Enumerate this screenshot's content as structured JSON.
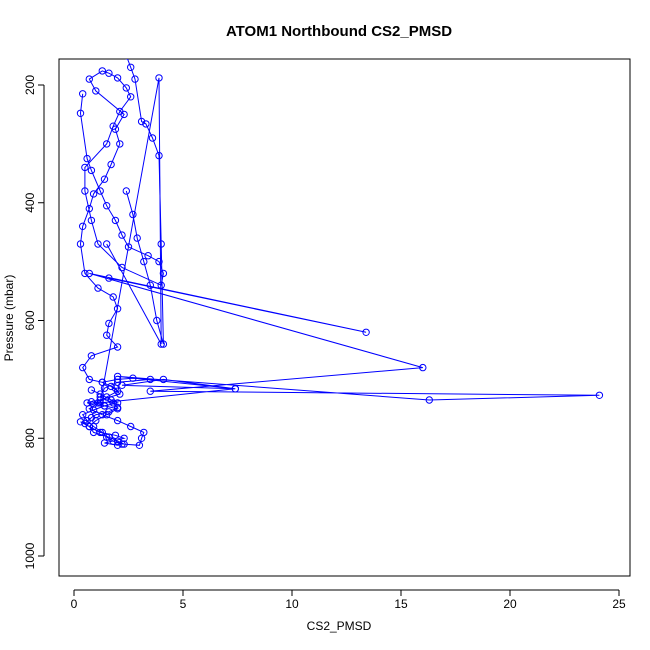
{
  "chart_data": {
    "type": "scatter",
    "mode": "lines+points",
    "title": "ATOM1 Northbound CS2_PMSD",
    "xlabel": "CS2_PMSD",
    "ylabel": "Pressure (mbar)",
    "xlim": [
      0,
      25
    ],
    "ylim": [
      1000,
      200
    ],
    "y_reversed": true,
    "x_ticks": [
      0,
      5,
      10,
      15,
      20,
      25
    ],
    "y_ticks": [
      200,
      400,
      600,
      800,
      1000
    ],
    "grid": false,
    "legend": "none",
    "color": "#0000ff",
    "series": [
      {
        "x": [
          0.4,
          0.3,
          0.6,
          0.8,
          1.2,
          1.5,
          1.9,
          2.2,
          2.5,
          3.4,
          3.9,
          4.1,
          4.0,
          2.2,
          1.1,
          0.8,
          0.5,
          0.5,
          1.5,
          1.8,
          2.1,
          2.6,
          2.4,
          2.0,
          1.6,
          1.3,
          0.7,
          1.0,
          2.3,
          1.9,
          2.1,
          1.7,
          1.4,
          0.9,
          0.7,
          0.4,
          0.3,
          0.5,
          1.1,
          1.8,
          2.0,
          1.6,
          1.5,
          2.0,
          0.8,
          0.4,
          0.7,
          1.3,
          1.9,
          2.1,
          1.2,
          0.9,
          0.6,
          0.8,
          1.4,
          2.0,
          1.5,
          1.0,
          0.7,
          0.9,
          1.6,
          2.0,
          2.3,
          3.0,
          3.1,
          3.2,
          2.6,
          2.0,
          1.3,
          0.7,
          1.1,
          1.5,
          2.0,
          1.7,
          1.3,
          2.0,
          2.7,
          3.5,
          2.0,
          1.4,
          1.2,
          1.8,
          2.0,
          1.6,
          1.0,
          0.8,
          0.5,
          0.3,
          0.7,
          1.2,
          1.9,
          2.3,
          1.4,
          2.0,
          2.2,
          1.8,
          1.5,
          1.3,
          0.9,
          0.6,
          0.4,
          0.9,
          1.4,
          2.0,
          1.7,
          1.2,
          0.8
        ],
        "y": [
          215,
          248,
          325,
          345,
          380,
          405,
          430,
          455,
          475,
          490,
          500,
          520,
          540,
          510,
          470,
          430,
          380,
          340,
          300,
          270,
          245,
          220,
          205,
          188,
          180,
          176,
          190,
          210,
          250,
          275,
          300,
          335,
          360,
          385,
          410,
          440,
          470,
          520,
          545,
          560,
          580,
          605,
          625,
          645,
          660,
          680,
          700,
          705,
          715,
          725,
          735,
          742,
          740,
          738,
          745,
          750,
          760,
          770,
          780,
          790,
          798,
          805,
          810,
          812,
          800,
          790,
          780,
          770,
          760,
          750,
          740,
          730,
          720,
          712,
          705,
          700,
          698,
          700,
          705,
          715,
          730,
          740,
          748,
          755,
          760,
          765,
          775,
          772,
          780,
          790,
          795,
          800,
          808,
          812,
          810,
          805,
          798,
          790,
          780,
          770,
          760,
          752,
          745,
          740,
          735,
          725,
          718
        ]
      },
      {
        "x": [
          2.4,
          2.6,
          2.8,
          3.1,
          3.3,
          3.6,
          3.9,
          4.0,
          4.1,
          3.8,
          3.5,
          3.2,
          2.9,
          2.7,
          2.4
        ],
        "y": [
          150,
          170,
          190,
          262,
          266,
          290,
          320,
          470,
          640,
          600,
          540,
          500,
          460,
          420,
          380
        ]
      },
      {
        "x": [
          1.6,
          13.4,
          0.7,
          16.0,
          3.5,
          24.1,
          16.3,
          2.0,
          7.4,
          2.2,
          4.1,
          7.4,
          1.2,
          3.9,
          4.0,
          1.5
        ],
        "y": [
          528,
          620,
          520,
          680,
          720,
          727,
          735,
          695,
          716,
          710,
          700,
          716,
          740,
          188,
          640,
          470
        ]
      }
    ]
  }
}
